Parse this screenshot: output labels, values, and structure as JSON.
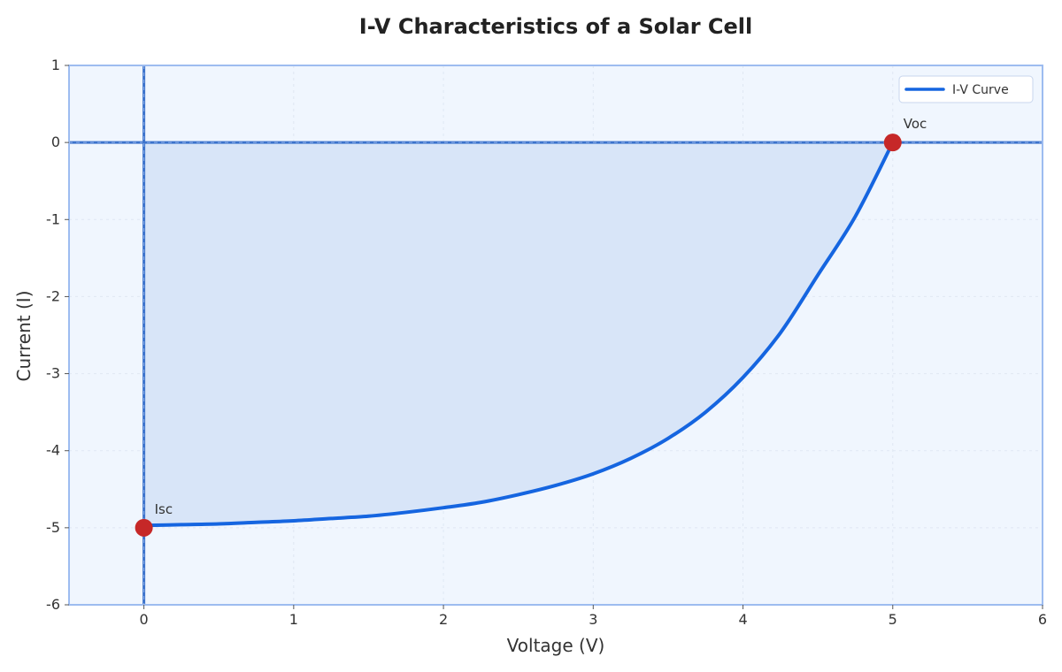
{
  "chart_data": {
    "type": "line",
    "title": "I-V Characteristics of a Solar Cell",
    "xlabel": "Voltage (V)",
    "ylabel": "Current (I)",
    "xlim": [
      -0.5,
      6
    ],
    "ylim": [
      -6,
      1
    ],
    "xticks": [
      0,
      1,
      2,
      3,
      4,
      5,
      6
    ],
    "yticks": [
      1,
      0,
      -1,
      -2,
      -3,
      -4,
      -5,
      -6
    ],
    "grid": true,
    "legend_position": "top-right",
    "series": [
      {
        "name": "I-V Curve",
        "x": [
          0,
          0.25,
          0.5,
          0.75,
          1.0,
          1.25,
          1.5,
          1.75,
          2.0,
          2.25,
          2.5,
          2.75,
          3.0,
          3.25,
          3.5,
          3.75,
          4.0,
          4.25,
          4.5,
          4.75,
          5.0
        ],
        "y": [
          -4.97,
          -4.96,
          -4.95,
          -4.93,
          -4.91,
          -4.88,
          -4.85,
          -4.8,
          -4.74,
          -4.67,
          -4.57,
          -4.45,
          -4.3,
          -4.1,
          -3.84,
          -3.5,
          -3.05,
          -2.47,
          -1.72,
          -0.96,
          0.0
        ]
      }
    ],
    "annotations": [
      {
        "label": "Isc",
        "x": 0,
        "y": -5
      },
      {
        "label": "Voc",
        "x": 5,
        "y": 0
      }
    ],
    "fill_under_curve": true
  },
  "colors": {
    "plot_background": "#f0f6fe",
    "frame": "#9dbcf0",
    "curve": "#1565e0",
    "fill": "#d8e5f8",
    "marker": "#c62828",
    "reference_lines": "#3c73cc",
    "grid": "#dfe7f3"
  }
}
